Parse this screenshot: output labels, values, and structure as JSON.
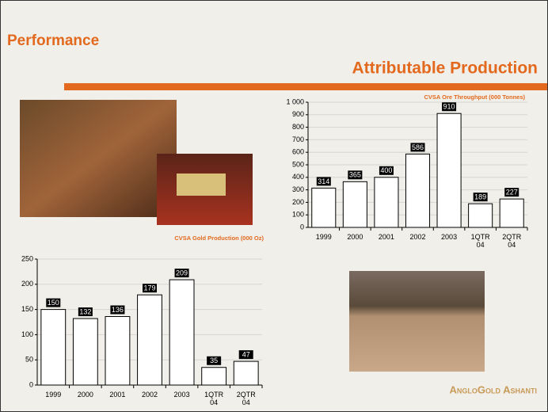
{
  "header": {
    "title": "Performance",
    "subtitle": "Attributable Production"
  },
  "footer": {
    "logo": "AngloGold Ashanti"
  },
  "chart_data": [
    {
      "type": "bar",
      "title": "CVSA Ore Throughput (000 Tonnes)",
      "categories": [
        "1999",
        "2000",
        "2001",
        "2002",
        "2003",
        "1QTR 04",
        "2QTR 04"
      ],
      "values": [
        314,
        365,
        400,
        586,
        910,
        189,
        227
      ],
      "color": "#ffffff",
      "ylim": [
        0,
        1000
      ],
      "yticks": [
        0,
        100,
        200,
        300,
        400,
        500,
        600,
        700,
        800,
        900,
        {
          "value": 1000,
          "label": "1 000"
        }
      ],
      "grid": true
    },
    {
      "type": "bar",
      "title": "CVSA Gold Production (000 Oz)",
      "categories": [
        "1999",
        "2000",
        "2001",
        "2002",
        "2003",
        "1QTR 04",
        "2QTR 04"
      ],
      "values": [
        150,
        132,
        136,
        179,
        209,
        35,
        47
      ],
      "color": "#ffffff",
      "ylim": [
        0,
        250
      ],
      "yticks": [
        0,
        50,
        100,
        150,
        200,
        250
      ],
      "grid": true
    }
  ]
}
